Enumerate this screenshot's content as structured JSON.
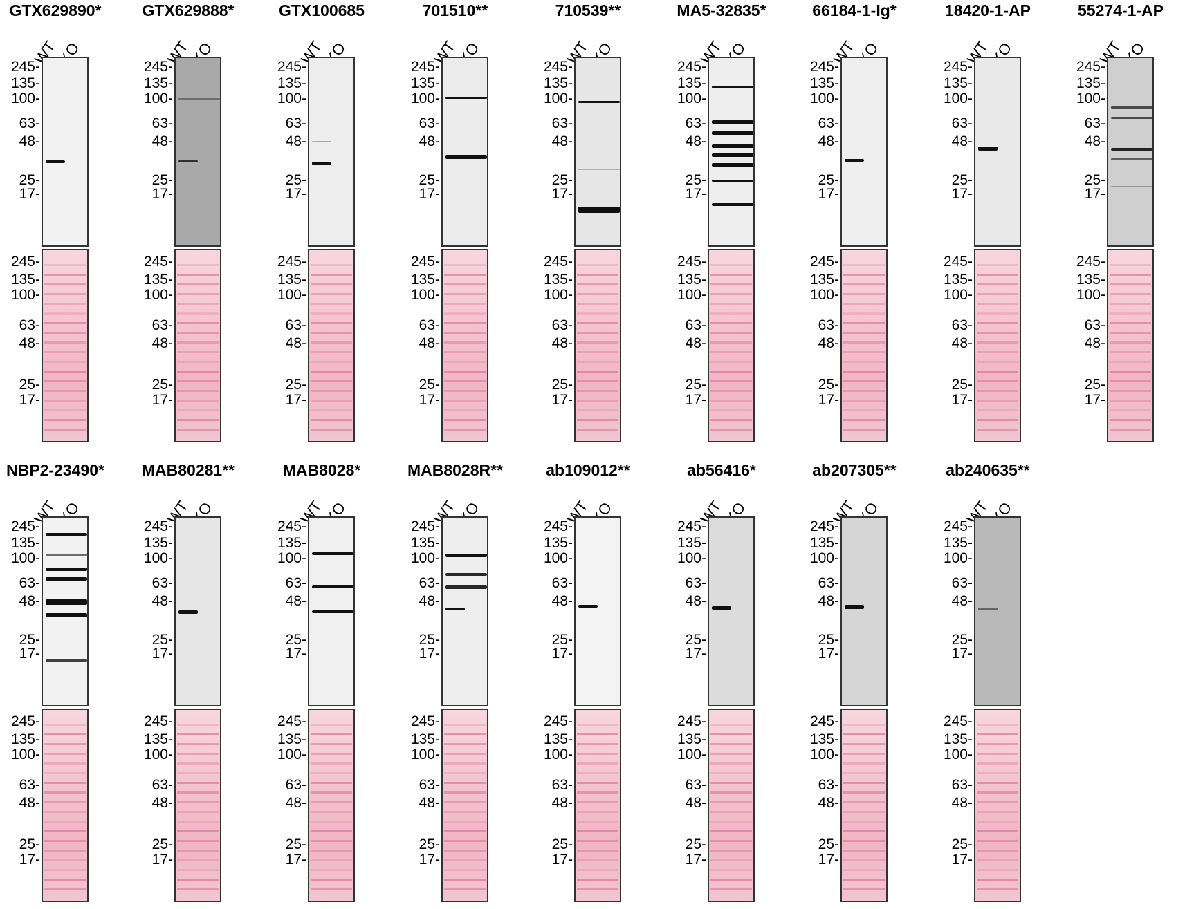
{
  "lane_labels": [
    "WT",
    "KO"
  ],
  "mw_markers": [
    "245",
    "135",
    "100",
    "63",
    "48",
    "25",
    "17"
  ],
  "panels": [
    {
      "title": "GTX629890*",
      "wb_bg": "#f2f2f2"
    },
    {
      "title": "GTX629888*",
      "wb_bg": "#a9a9a9"
    },
    {
      "title": "GTX100685",
      "wb_bg": "#ededed"
    },
    {
      "title": "701510**",
      "wb_bg": "#ececec"
    },
    {
      "title": "710539**",
      "wb_bg": "#e6e6e6"
    },
    {
      "title": "MA5-32835*",
      "wb_bg": "#eeeeee"
    },
    {
      "title": "66184-1-Ig*",
      "wb_bg": "#efefef"
    },
    {
      "title": "18420-1-AP",
      "wb_bg": "#e9e9e9"
    },
    {
      "title": "55274-1-AP",
      "wb_bg": "#cfcfcf"
    },
    {
      "title": "NBP2-23490*",
      "wb_bg": "#f2f2f2"
    },
    {
      "title": "MAB80281**",
      "wb_bg": "#e6e6e6"
    },
    {
      "title": "MAB8028*",
      "wb_bg": "#f0f0f0"
    },
    {
      "title": "MAB8028R**",
      "wb_bg": "#eeeeee"
    },
    {
      "title": "ab109012**",
      "wb_bg": "#f3f3f3"
    },
    {
      "title": "ab56416*",
      "wb_bg": "#dcdcdc"
    },
    {
      "title": "ab207305**",
      "wb_bg": "#d6d6d6"
    },
    {
      "title": "ab240635**",
      "wb_bg": "#b9b9b9"
    }
  ]
}
